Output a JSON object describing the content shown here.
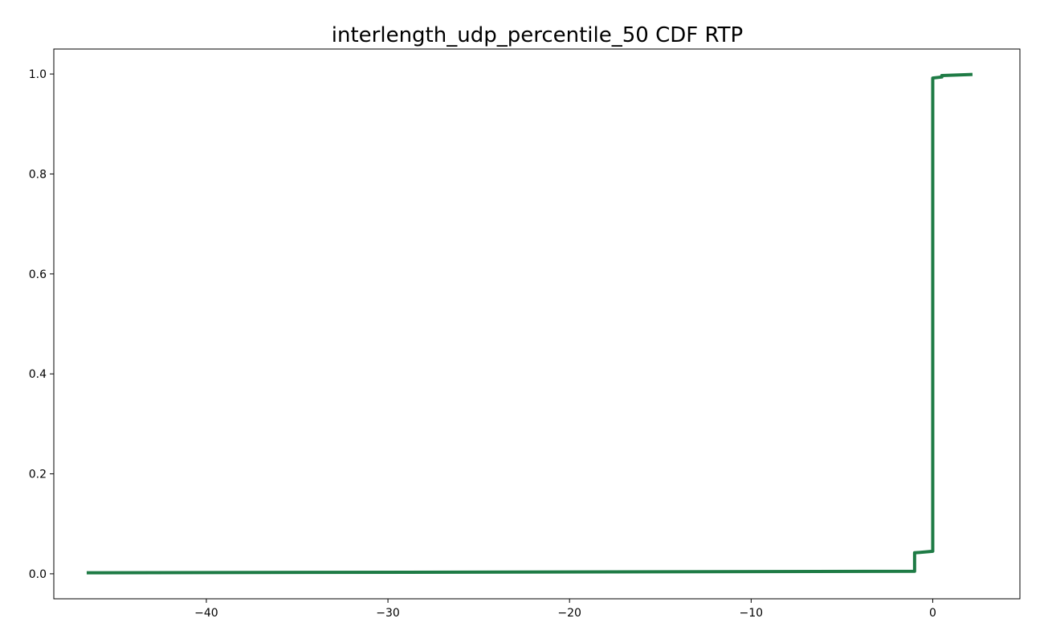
{
  "chart_data": {
    "type": "line",
    "title": "interlength_udp_percentile_50 CDF RTP",
    "xlabel": "",
    "ylabel": "",
    "xlim": [
      -48.4,
      4.8
    ],
    "ylim": [
      -0.05,
      1.05
    ],
    "x_ticks": [
      -40,
      -30,
      -20,
      -10,
      0
    ],
    "x_tick_labels": [
      "−40",
      "−30",
      "−20",
      "−10",
      "0"
    ],
    "y_ticks": [
      0.0,
      0.2,
      0.4,
      0.6,
      0.8,
      1.0
    ],
    "y_tick_labels": [
      "0.0",
      "0.2",
      "0.4",
      "0.6",
      "0.8",
      "1.0"
    ],
    "grid": false,
    "legend": "none",
    "series": [
      {
        "color": "#1e7b45",
        "x": [
          -46.5,
          -1.0,
          -1.0,
          0.0,
          0.0,
          0.5,
          0.5,
          2.1
        ],
        "y": [
          0.002,
          0.005,
          0.042,
          0.045,
          0.992,
          0.994,
          0.997,
          0.999
        ]
      }
    ]
  }
}
